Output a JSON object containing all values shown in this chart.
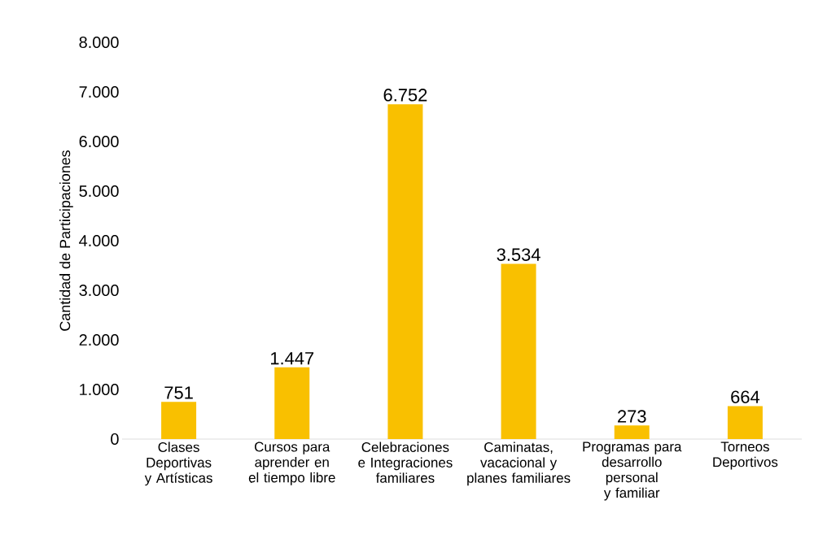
{
  "chart_data": {
    "type": "bar",
    "ylabel": "Cantidad de Participaciones",
    "categories": [
      "Clases Deportivas y Artísticas",
      "Cursos para aprender en el tiempo libre",
      "Celebraciones e Integraciones familiares",
      "Caminatas, vacacional y planes familiares",
      "Programas para desarrollo personal y familiar",
      "Torneos Deportivos"
    ],
    "values": [
      751,
      1447,
      6752,
      3534,
      273,
      664
    ],
    "value_labels": [
      "751",
      "1.447",
      "6.752",
      "3.534",
      "273",
      "664"
    ],
    "color": "#f9c000",
    "ylim": [
      0,
      8000
    ],
    "yticks": [
      0,
      {
        "value": 1000,
        "label": "1.000"
      },
      {
        "value": 2000,
        "label": "2.000"
      },
      {
        "value": 3000,
        "label": "3.000"
      },
      {
        "value": 4000,
        "label": "4.000"
      },
      {
        "value": 5000,
        "label": "5.000"
      },
      {
        "value": 6000,
        "label": "6.000"
      },
      {
        "value": 7000,
        "label": "7.000"
      },
      {
        "value": 8000,
        "label": "8.000"
      }
    ],
    "grid": false
  }
}
